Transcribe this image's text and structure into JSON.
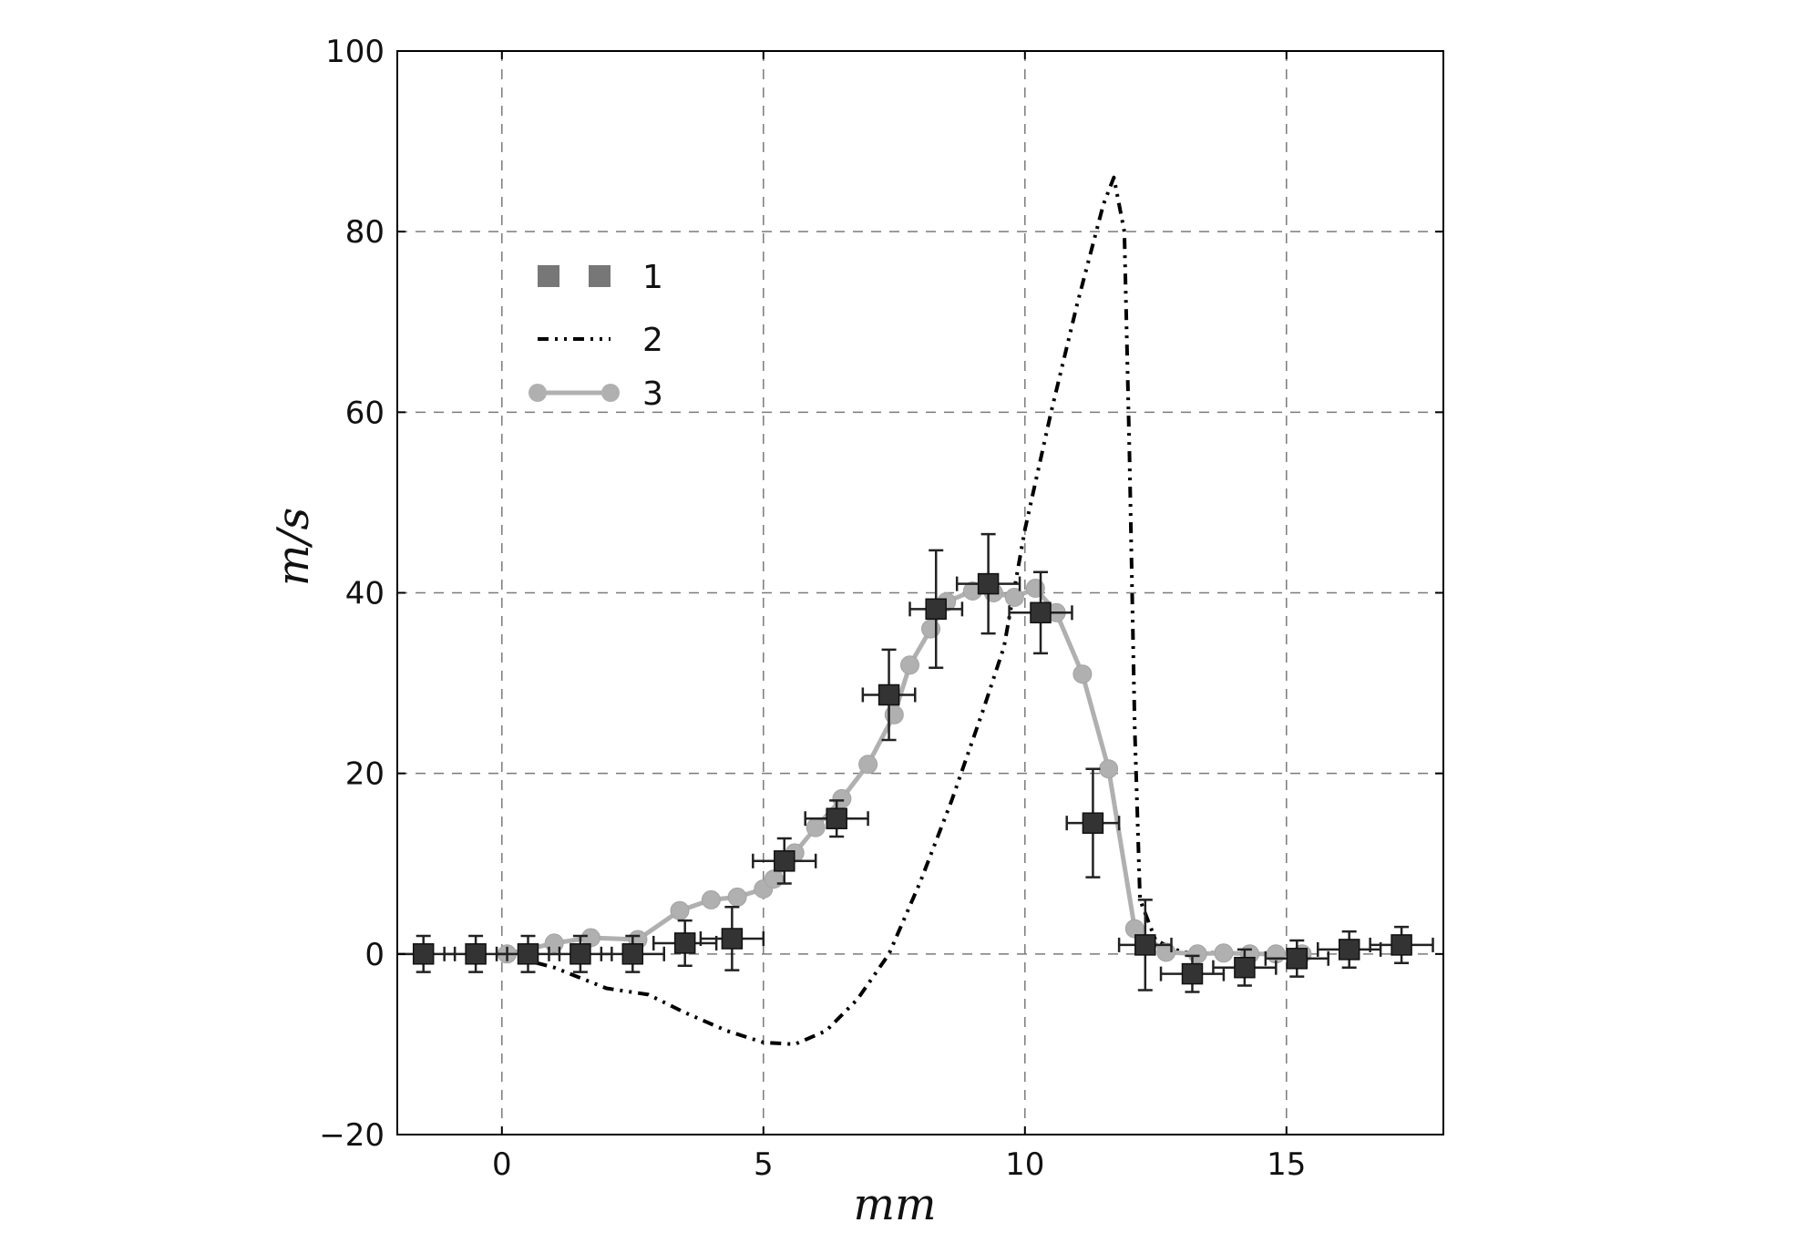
{
  "chart_data": {
    "type": "line",
    "xlabel": "mm",
    "ylabel": "m/s",
    "xlim": [
      -2,
      18
    ],
    "ylim": [
      -20,
      100
    ],
    "xticks": [
      0,
      5,
      10,
      15
    ],
    "xtick_labels": [
      "0",
      "5",
      "10",
      "15"
    ],
    "yticks": [
      -20,
      0,
      20,
      40,
      60,
      80,
      100
    ],
    "ytick_labels": [
      "−20",
      "0",
      "20",
      "40",
      "60",
      "80",
      "100"
    ],
    "grid": true,
    "legend_position": "upper-left",
    "series": [
      {
        "name": "1",
        "style": "square markers with error bars",
        "color": "#333333",
        "points": [
          {
            "x": -1.5,
            "y": 0.0,
            "xerr": 0.6,
            "yerr": 2.0
          },
          {
            "x": -0.5,
            "y": 0.0,
            "xerr": 0.6,
            "yerr": 2.0
          },
          {
            "x": 0.5,
            "y": 0.0,
            "xerr": 0.6,
            "yerr": 2.0
          },
          {
            "x": 1.5,
            "y": 0.0,
            "xerr": 0.6,
            "yerr": 2.0
          },
          {
            "x": 2.5,
            "y": 0.0,
            "xerr": 0.6,
            "yerr": 2.0
          },
          {
            "x": 3.5,
            "y": 1.2,
            "xerr": 0.6,
            "yerr": 2.5
          },
          {
            "x": 4.4,
            "y": 1.7,
            "xerr": 0.6,
            "yerr": 3.5
          },
          {
            "x": 5.4,
            "y": 10.3,
            "xerr": 0.6,
            "yerr": 2.5
          },
          {
            "x": 6.4,
            "y": 15.0,
            "xerr": 0.6,
            "yerr": 2.0
          },
          {
            "x": 7.4,
            "y": 28.7,
            "xerr": 0.5,
            "yerr": 5.0
          },
          {
            "x": 8.3,
            "y": 38.2,
            "xerr": 0.5,
            "yerr": 6.5
          },
          {
            "x": 9.3,
            "y": 41.0,
            "xerr": 0.6,
            "yerr": 5.5
          },
          {
            "x": 10.3,
            "y": 37.8,
            "xerr": 0.6,
            "yerr": 4.5
          },
          {
            "x": 11.3,
            "y": 14.5,
            "xerr": 0.5,
            "yerr": 6.0
          },
          {
            "x": 12.3,
            "y": 1.0,
            "xerr": 0.5,
            "yerr": 5.0
          },
          {
            "x": 13.2,
            "y": -2.2,
            "xerr": 0.6,
            "yerr": 2.0
          },
          {
            "x": 14.2,
            "y": -1.5,
            "xerr": 0.6,
            "yerr": 2.0
          },
          {
            "x": 15.2,
            "y": -0.5,
            "xerr": 0.6,
            "yerr": 2.0
          },
          {
            "x": 16.2,
            "y": 0.5,
            "xerr": 0.6,
            "yerr": 2.0
          },
          {
            "x": 17.2,
            "y": 1.0,
            "xerr": 0.6,
            "yerr": 2.0
          }
        ]
      },
      {
        "name": "2",
        "style": "dash-dot-dot line",
        "color": "#000000",
        "points": [
          {
            "x": 0.0,
            "y": 0.0
          },
          {
            "x": 1.0,
            "y": -1.5
          },
          {
            "x": 2.0,
            "y": -3.8
          },
          {
            "x": 2.8,
            "y": -4.5
          },
          {
            "x": 3.5,
            "y": -6.5
          },
          {
            "x": 4.3,
            "y": -8.5
          },
          {
            "x": 5.0,
            "y": -9.8
          },
          {
            "x": 5.6,
            "y": -10.0
          },
          {
            "x": 6.2,
            "y": -8.5
          },
          {
            "x": 6.8,
            "y": -5.0
          },
          {
            "x": 7.4,
            "y": 0.0
          },
          {
            "x": 8.0,
            "y": 8.0
          },
          {
            "x": 8.6,
            "y": 17.0
          },
          {
            "x": 9.2,
            "y": 27.0
          },
          {
            "x": 9.6,
            "y": 34.0
          },
          {
            "x": 10.0,
            "y": 47.0
          },
          {
            "x": 10.5,
            "y": 60.0
          },
          {
            "x": 11.0,
            "y": 72.0
          },
          {
            "x": 11.5,
            "y": 83.0
          },
          {
            "x": 11.7,
            "y": 86.0
          },
          {
            "x": 11.9,
            "y": 80.0
          },
          {
            "x": 12.0,
            "y": 55.0
          },
          {
            "x": 12.1,
            "y": 25.0
          },
          {
            "x": 12.2,
            "y": 6.0
          },
          {
            "x": 12.5,
            "y": 1.5
          },
          {
            "x": 13.0,
            "y": 0.2
          },
          {
            "x": 15.0,
            "y": 0.0
          }
        ]
      },
      {
        "name": "3",
        "style": "solid line with circle markers",
        "color": "#b0b0b0",
        "points": [
          {
            "x": 0.1,
            "y": 0.0
          },
          {
            "x": 1.0,
            "y": 1.2
          },
          {
            "x": 1.7,
            "y": 1.8
          },
          {
            "x": 2.6,
            "y": 1.6
          },
          {
            "x": 3.4,
            "y": 4.8
          },
          {
            "x": 4.0,
            "y": 6.0
          },
          {
            "x": 4.5,
            "y": 6.3
          },
          {
            "x": 5.0,
            "y": 7.2
          },
          {
            "x": 5.2,
            "y": 8.3
          },
          {
            "x": 5.6,
            "y": 11.2
          },
          {
            "x": 6.0,
            "y": 14.0
          },
          {
            "x": 6.5,
            "y": 17.2
          },
          {
            "x": 7.0,
            "y": 21.0
          },
          {
            "x": 7.5,
            "y": 26.5
          },
          {
            "x": 7.8,
            "y": 32.0
          },
          {
            "x": 8.2,
            "y": 36.0
          },
          {
            "x": 8.5,
            "y": 39.0
          },
          {
            "x": 9.0,
            "y": 40.2
          },
          {
            "x": 9.4,
            "y": 40.0
          },
          {
            "x": 9.8,
            "y": 39.5
          },
          {
            "x": 10.2,
            "y": 40.5
          },
          {
            "x": 10.6,
            "y": 37.8
          },
          {
            "x": 11.1,
            "y": 31.0
          },
          {
            "x": 11.6,
            "y": 20.5
          },
          {
            "x": 12.1,
            "y": 2.8
          },
          {
            "x": 12.7,
            "y": 0.2
          },
          {
            "x": 13.3,
            "y": 0.0
          },
          {
            "x": 13.8,
            "y": 0.1
          },
          {
            "x": 14.3,
            "y": 0.0
          },
          {
            "x": 14.8,
            "y": 0.0
          },
          {
            "x": 15.3,
            "y": 0.0
          }
        ]
      }
    ]
  }
}
